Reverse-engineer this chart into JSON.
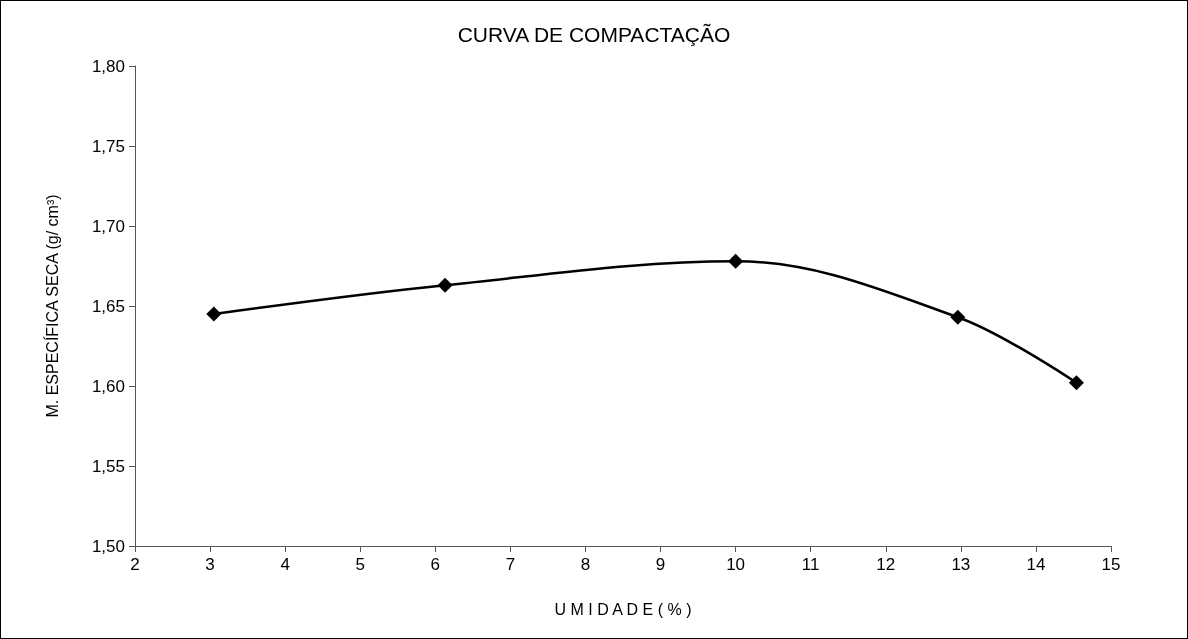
{
  "chart_data": {
    "type": "line",
    "title": "CURVA DE COMPACTAÇÃO",
    "xlabel": "U M I D A D E ( % )",
    "ylabel": "M. ESPECÍFICA SECA (g/ cm³)",
    "x": [
      3.05,
      6.13,
      10.0,
      12.96,
      14.54
    ],
    "series": [
      {
        "color": "#000000",
        "values": [
          1.645,
          1.663,
          1.678,
          1.643,
          1.602
        ]
      }
    ],
    "xlim": [
      2,
      15
    ],
    "xticks": [
      2,
      3,
      4,
      5,
      6,
      7,
      8,
      9,
      10,
      11,
      12,
      13,
      14,
      15
    ],
    "ylim": [
      1.5,
      1.8
    ],
    "yticks": [
      {
        "value": 1.5,
        "label": "1,50"
      },
      {
        "value": 1.55,
        "label": "1,55"
      },
      {
        "value": 1.6,
        "label": "1,60"
      },
      {
        "value": 1.65,
        "label": "1,65"
      },
      {
        "value": 1.7,
        "label": "1,70"
      },
      {
        "value": 1.75,
        "label": "1,75"
      },
      {
        "value": 1.8,
        "label": "1,80"
      }
    ],
    "grid": false,
    "marker": "diamond",
    "line_style": "solid"
  }
}
